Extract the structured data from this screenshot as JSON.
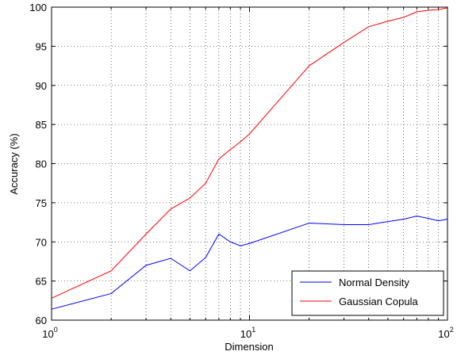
{
  "chart_data": {
    "type": "line",
    "xscale": "log",
    "xlim": [
      1,
      100
    ],
    "ylim": [
      60,
      100
    ],
    "xlabel": "Dimension",
    "ylabel": "Accuracy (%)",
    "grid": true,
    "legend_position": "bottom-right",
    "x_ticks": [
      {
        "value": 1,
        "base": "10",
        "exp": "0"
      },
      {
        "value": 10,
        "base": "10",
        "exp": "1"
      },
      {
        "value": 100,
        "base": "10",
        "exp": "2"
      }
    ],
    "y_ticks": [
      60,
      65,
      70,
      75,
      80,
      85,
      90,
      95,
      100
    ],
    "series": [
      {
        "name": "Normal Density",
        "color": "#0000ff",
        "x": [
          1,
          2,
          3,
          4,
          5,
          6,
          7,
          8,
          9,
          10,
          20,
          30,
          40,
          50,
          60,
          70,
          80,
          90,
          100
        ],
        "values": [
          61.4,
          63.4,
          67.0,
          67.9,
          66.3,
          68.0,
          71.0,
          70.0,
          69.5,
          69.8,
          72.4,
          72.2,
          72.2,
          72.6,
          72.9,
          73.3,
          73.0,
          72.7,
          72.9
        ]
      },
      {
        "name": "Gaussian Copula",
        "color": "#ff0000",
        "x": [
          1,
          2,
          3,
          4,
          5,
          6,
          7,
          8,
          9,
          10,
          20,
          30,
          40,
          50,
          60,
          70,
          80,
          90,
          100
        ],
        "values": [
          62.8,
          66.3,
          71.0,
          74.2,
          75.6,
          77.5,
          80.6,
          81.8,
          82.8,
          83.8,
          92.5,
          95.5,
          97.5,
          98.2,
          98.7,
          99.4,
          99.6,
          99.7,
          99.9
        ]
      }
    ]
  }
}
